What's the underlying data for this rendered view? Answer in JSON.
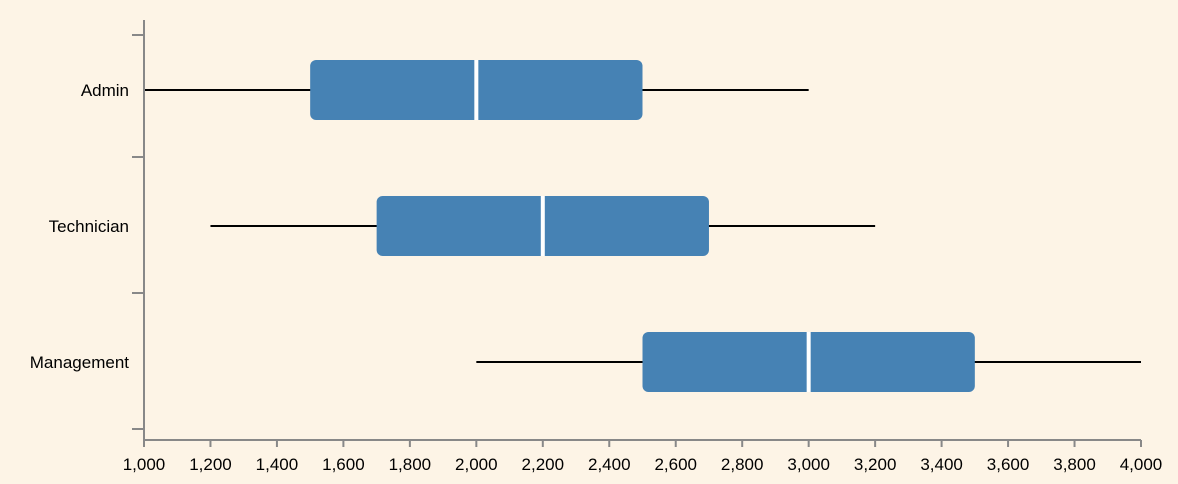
{
  "colors": {
    "background": "#fdf4e6",
    "box_fill": "#4682b4",
    "median": "#ffffff",
    "whisker": "#000000",
    "axis": "#888888"
  },
  "chart_data": {
    "type": "boxplot",
    "orientation": "horizontal",
    "title": "",
    "xlabel": "",
    "ylabel": "",
    "xlim": [
      1000,
      4000
    ],
    "x_ticks": [
      1000,
      1200,
      1400,
      1600,
      1800,
      2000,
      2200,
      2400,
      2600,
      2800,
      3000,
      3200,
      3400,
      3600,
      3800,
      4000
    ],
    "x_tick_labels": [
      "1,000",
      "1,200",
      "1,400",
      "1,600",
      "1,800",
      "2,000",
      "2,200",
      "2,400",
      "2,600",
      "2,800",
      "3,000",
      "3,200",
      "3,400",
      "3,600",
      "3,800",
      "4,000"
    ],
    "categories": [
      "Admin",
      "Technician",
      "Management"
    ],
    "boxes": [
      {
        "category": "Admin",
        "min": 1000,
        "q1": 1500,
        "median": 2000,
        "q3": 2500,
        "max": 3000
      },
      {
        "category": "Technician",
        "min": 1200,
        "q1": 1700,
        "median": 2200,
        "q3": 2700,
        "max": 3200
      },
      {
        "category": "Management",
        "min": 2000,
        "q1": 2500,
        "median": 3000,
        "q3": 3500,
        "max": 4000
      }
    ],
    "grid": false,
    "legend": "none"
  }
}
